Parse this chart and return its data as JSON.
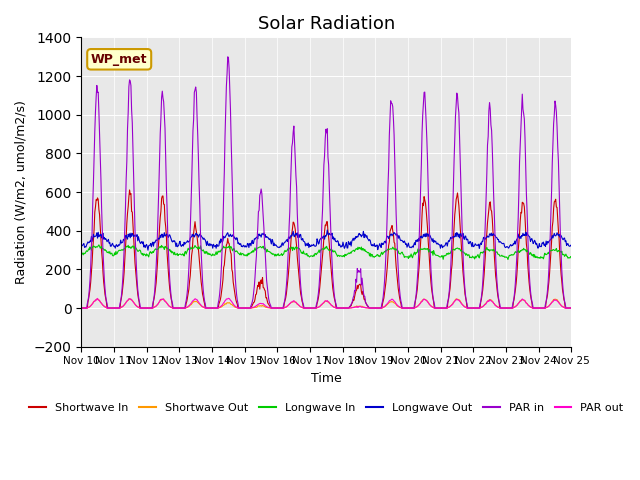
{
  "title": "Solar Radiation",
  "xlabel": "Time",
  "ylabel": "Radiation (W/m2, umol/m2/s)",
  "ylim": [
    -200,
    1400
  ],
  "yticks": [
    -200,
    0,
    200,
    400,
    600,
    800,
    1000,
    1200,
    1400
  ],
  "station_label": "WP_met",
  "background_color": "#e8e8e8",
  "fig_background": "#ffffff",
  "series": {
    "shortwave_in": {
      "color": "#cc0000",
      "label": "Shortwave In"
    },
    "shortwave_out": {
      "color": "#ff9900",
      "label": "Shortwave Out"
    },
    "longwave_in": {
      "color": "#00cc00",
      "label": "Longwave In"
    },
    "longwave_out": {
      "color": "#0000cc",
      "label": "Longwave Out"
    },
    "par_in": {
      "color": "#9900cc",
      "label": "PAR in"
    },
    "par_out": {
      "color": "#ff00cc",
      "label": "PAR out"
    }
  },
  "xtick_labels": [
    "Nov 10",
    "Nov 11",
    "Nov 12",
    "Nov 13",
    "Nov 14",
    "Nov 15",
    "Nov 16",
    "Nov 17",
    "Nov 18",
    "Nov 19",
    "Nov 20",
    "Nov 21",
    "Nov 22",
    "Nov 23",
    "Nov 24",
    "Nov 25"
  ],
  "n_days": 15,
  "points_per_day": 48
}
